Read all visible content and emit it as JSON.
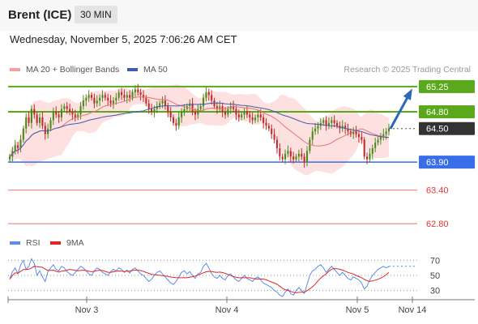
{
  "header": {
    "symbol": "Brent (ICE)",
    "timeframe": "30 MIN"
  },
  "datetime": "Wednesday, November 5, 2025 7:06:26 AM CET",
  "legend": {
    "bollinger_label": "MA 20 + Bollinger Bands",
    "ma50_label": "MA 50",
    "rsi_label": "RSI",
    "rsi_ma_label": "9MA"
  },
  "research": "Research © 2025 Trading Central",
  "colors": {
    "resistance": "#5aa81b",
    "support": "#3a6ee8",
    "target": "#e83535",
    "price_box": "#333333",
    "candle_up": "#4a8a1c",
    "candle_down": "#c22a2a",
    "bollinger_fill": "#fcd6d6",
    "ma20": "#e87474",
    "ma50": "#3f5ea8",
    "rsi": "#5b8de8",
    "rsi_ma": "#e02525",
    "arrow": "#2e66b8"
  },
  "chart_data": {
    "type": "candlestick",
    "price_ylim": [
      62.6,
      65.35
    ],
    "levels": [
      {
        "value": 65.25,
        "label": "65.25",
        "kind": "resistance"
      },
      {
        "value": 64.8,
        "label": "64.80",
        "kind": "resistance"
      },
      {
        "value": 64.5,
        "label": "64.50",
        "kind": "current"
      },
      {
        "value": 63.9,
        "label": "63.90",
        "kind": "support"
      },
      {
        "value": 63.4,
        "label": "63.40",
        "kind": "target"
      },
      {
        "value": 62.8,
        "label": "62.80",
        "kind": "target"
      }
    ],
    "x_labels": [
      "Nov 3",
      "Nov 4",
      "Nov 5",
      "Nov 14"
    ],
    "closes": [
      64.0,
      64.1,
      64.2,
      64.15,
      64.3,
      64.5,
      64.7,
      64.6,
      64.85,
      64.75,
      64.6,
      64.7,
      64.55,
      64.4,
      64.5,
      64.65,
      64.8,
      64.75,
      64.7,
      64.85,
      64.9,
      64.85,
      64.8,
      64.75,
      64.7,
      64.75,
      64.9,
      65.0,
      65.05,
      65.1,
      65.05,
      64.95,
      65.0,
      65.05,
      65.1,
      65.05,
      65.0,
      64.95,
      65.0,
      65.05,
      65.15,
      65.1,
      65.05,
      65.1,
      65.05,
      65.15,
      65.2,
      65.15,
      65.1,
      65.05,
      64.95,
      64.85,
      64.8,
      64.85,
      64.9,
      64.95,
      65.0,
      64.9,
      64.8,
      64.7,
      64.6,
      64.55,
      64.7,
      64.8,
      64.85,
      64.9,
      64.95,
      64.8,
      64.75,
      64.85,
      64.9,
      65.05,
      65.15,
      65.1,
      65.0,
      64.9,
      64.85,
      64.9,
      64.8,
      64.75,
      64.85,
      64.9,
      64.85,
      64.75,
      64.7,
      64.75,
      64.8,
      64.75,
      64.7,
      64.65,
      64.7,
      64.75,
      64.7,
      64.6,
      64.55,
      64.5,
      64.4,
      64.3,
      64.15,
      64.0,
      63.95,
      64.05,
      64.1,
      64.0,
      63.95,
      64.0,
      64.05,
      64.0,
      63.9,
      64.1,
      64.3,
      64.45,
      64.5,
      64.55,
      64.6,
      64.65,
      64.55,
      64.6,
      64.65,
      64.6,
      64.55,
      64.5,
      64.55,
      64.5,
      64.45,
      64.4,
      64.45,
      64.4,
      64.35,
      64.3,
      64.0,
      63.95,
      64.05,
      64.15,
      64.25,
      64.3,
      64.35,
      64.4,
      64.45,
      64.5
    ],
    "rsi_levels": [
      70,
      50,
      30
    ],
    "rsi": [
      45,
      55,
      60,
      52,
      64,
      70,
      58,
      62,
      72,
      66,
      50,
      56,
      48,
      42,
      55,
      60,
      64,
      58,
      56,
      62,
      60,
      55,
      52,
      50,
      54,
      58,
      62,
      60,
      56,
      52,
      50,
      56,
      60,
      58,
      54,
      52,
      50,
      55,
      58,
      56,
      60,
      58,
      54,
      57,
      53,
      58,
      60,
      56,
      52,
      50,
      46,
      42,
      45,
      50,
      54,
      56,
      52,
      48,
      44,
      40,
      38,
      42,
      48,
      54,
      56,
      52,
      55,
      50,
      46,
      52,
      54,
      62,
      66,
      60,
      52,
      48,
      46,
      50,
      46,
      44,
      50,
      52,
      48,
      44,
      42,
      46,
      50,
      46,
      44,
      42,
      46,
      48,
      44,
      40,
      38,
      36,
      34,
      30,
      28,
      24,
      22,
      28,
      32,
      26,
      24,
      30,
      34,
      30,
      26,
      38,
      50,
      56,
      58,
      62,
      64,
      60,
      54,
      58,
      62,
      58,
      54,
      50,
      54,
      50,
      46,
      44,
      48,
      46,
      44,
      40,
      32,
      36,
      44,
      50,
      54,
      58,
      60,
      62,
      60,
      62
    ]
  }
}
